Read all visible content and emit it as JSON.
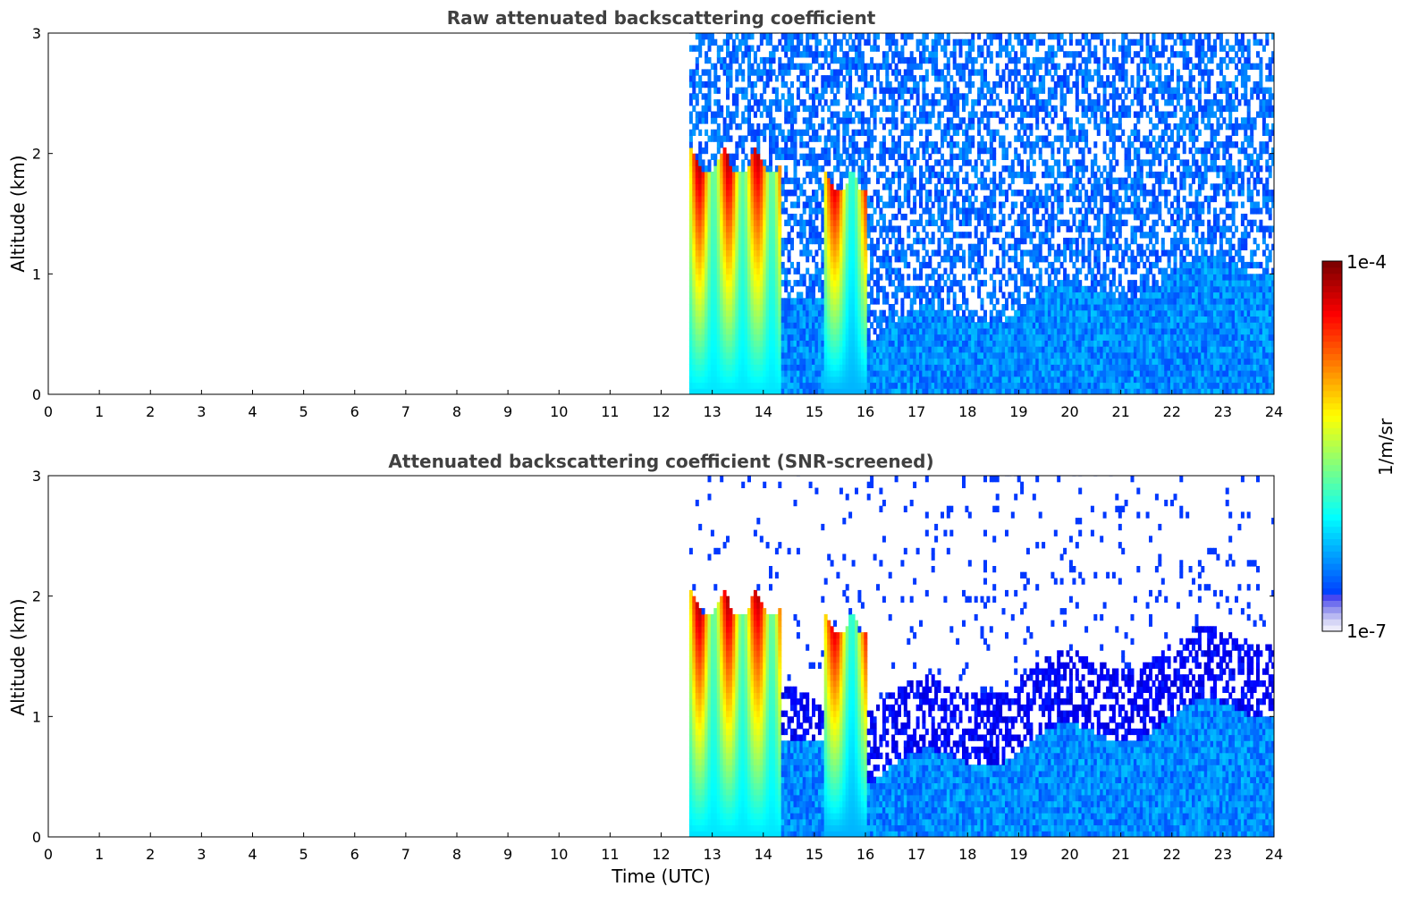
{
  "chart_data": [
    {
      "type": "heatmap",
      "title": "Raw attenuated backscattering coefficient",
      "xlabel": "",
      "ylabel": "Altitude (km)",
      "xlim": [
        0,
        24
      ],
      "ylim": [
        0,
        3
      ],
      "x_ticks": [
        "0",
        "1",
        "2",
        "3",
        "4",
        "5",
        "6",
        "7",
        "8",
        "9",
        "10",
        "11",
        "12",
        "13",
        "14",
        "15",
        "16",
        "17",
        "18",
        "19",
        "20",
        "21",
        "22",
        "23",
        "24"
      ],
      "y_ticks": [
        "0",
        "1",
        "2",
        "3"
      ],
      "data_start_time": 12.55,
      "data_end_time": 24,
      "screened": false,
      "features": [
        {
          "kind": "cloud",
          "t_start": 12.55,
          "t_end": 14.35,
          "top_km": 2.05
        },
        {
          "kind": "cloud",
          "t_start": 15.15,
          "t_end": 16.0,
          "top_km": 1.85
        },
        {
          "kind": "boundary_layer",
          "t_start": 16.0,
          "t_end": 24,
          "top_km_start": 0.5,
          "top_km_end": 1.1
        }
      ]
    },
    {
      "type": "heatmap",
      "title": "Attenuated backscattering coefficient (SNR-screened)",
      "xlabel": "Time (UTC)",
      "ylabel": "Altitude (km)",
      "xlim": [
        0,
        24
      ],
      "ylim": [
        0,
        3
      ],
      "x_ticks": [
        "0",
        "1",
        "2",
        "3",
        "4",
        "5",
        "6",
        "7",
        "8",
        "9",
        "10",
        "11",
        "12",
        "13",
        "14",
        "15",
        "16",
        "17",
        "18",
        "19",
        "20",
        "21",
        "22",
        "23",
        "24"
      ],
      "y_ticks": [
        "0",
        "1",
        "2",
        "3"
      ],
      "data_start_time": 12.55,
      "data_end_time": 24,
      "screened": true,
      "features": [
        {
          "kind": "cloud",
          "t_start": 12.55,
          "t_end": 14.35,
          "top_km": 2.05
        },
        {
          "kind": "cloud",
          "t_start": 15.15,
          "t_end": 16.0,
          "top_km": 1.85
        },
        {
          "kind": "boundary_layer",
          "t_start": 16.0,
          "t_end": 24,
          "top_km_start": 0.5,
          "top_km_end": 1.1
        }
      ]
    }
  ],
  "colorbar": {
    "min_label": "1e-7",
    "max_label": "1e-4",
    "unit": "1/m/sr",
    "colormap": "jet"
  }
}
